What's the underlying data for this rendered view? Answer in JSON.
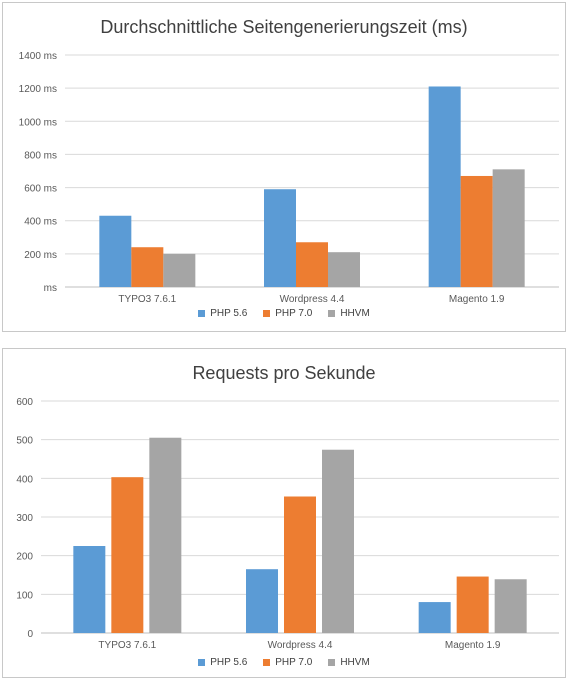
{
  "chart_data": [
    {
      "type": "bar",
      "title": "Durchschnittliche Seitengenerierungszeit (ms)",
      "categories": [
        "TYPO3 7.6.1",
        "Wordpress 4.4",
        "Magento 1.9"
      ],
      "series": [
        {
          "name": "PHP 5.6",
          "values": [
            430,
            590,
            1210
          ]
        },
        {
          "name": "PHP 7.0",
          "values": [
            240,
            270,
            670
          ]
        },
        {
          "name": "HHVM",
          "values": [
            200,
            210,
            710
          ]
        }
      ],
      "yticks": [
        "ms",
        "200 ms",
        "400 ms",
        "600 ms",
        "800 ms",
        "1000 ms",
        "1200 ms",
        "1400 ms"
      ],
      "ylim": [
        0,
        1400
      ],
      "grid": true,
      "legend_position": "bottom"
    },
    {
      "type": "bar",
      "title": "Requests pro Sekunde",
      "categories": [
        "TYPO3 7.6.1",
        "Wordpress 4.4",
        "Magento 1.9"
      ],
      "series": [
        {
          "name": "PHP 5.6",
          "values": [
            225,
            165,
            80
          ]
        },
        {
          "name": "PHP 7.0",
          "values": [
            403,
            353,
            146
          ]
        },
        {
          "name": "HHVM",
          "values": [
            505,
            474,
            139
          ]
        }
      ],
      "yticks": [
        "0",
        "100",
        "200",
        "300",
        "400",
        "500",
        "600"
      ],
      "ylim": [
        0,
        600
      ],
      "grid": true,
      "legend_position": "bottom"
    }
  ],
  "colors": {
    "series": [
      "#5b9bd5",
      "#ed7d31",
      "#a5a5a5"
    ],
    "grid": "#d9d9d9",
    "axis": "#bfbfbf"
  }
}
